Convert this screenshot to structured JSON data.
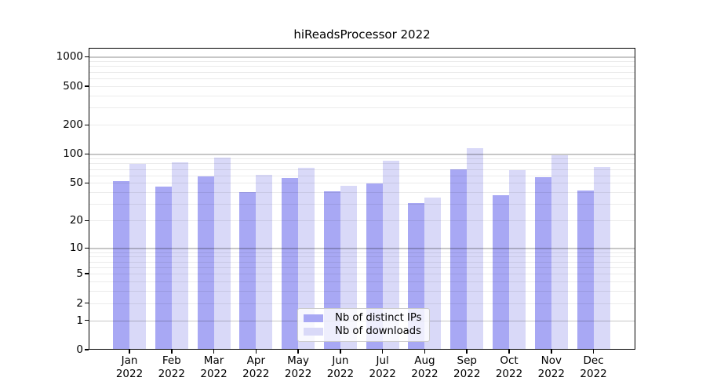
{
  "title": "hiReadsProcessor 2022",
  "chart_data": {
    "type": "bar",
    "title": "hiReadsProcessor 2022",
    "categories": [
      "Jan",
      "Feb",
      "Mar",
      "Apr",
      "May",
      "Jun",
      "Jul",
      "Aug",
      "Sep",
      "Oct",
      "Nov",
      "Dec"
    ],
    "category_year": "2022",
    "series": [
      {
        "name": "Nb of distinct IPs",
        "color": "#a8a8f4",
        "values": [
          52,
          46,
          59,
          40,
          56,
          41,
          49,
          31,
          70,
          37,
          58,
          42
        ]
      },
      {
        "name": "Nb of downloads",
        "color": "#d9d9f8",
        "values": [
          79,
          82,
          92,
          61,
          72,
          47,
          86,
          35,
          115,
          68,
          98,
          74
        ]
      }
    ],
    "y_axis": {
      "scale": "log1p",
      "ylim": [
        0,
        1200
      ],
      "tick_values": [
        0,
        1,
        2,
        5,
        10,
        20,
        50,
        100,
        200,
        500,
        1000
      ],
      "tick_labels": [
        "0",
        "1",
        "2",
        "5",
        "10",
        "20",
        "50",
        "100",
        "200",
        "500",
        "1000"
      ],
      "major_grid_values": [
        1,
        10,
        100,
        1000
      ],
      "minor_grid_values": [
        2,
        3,
        4,
        5,
        6,
        7,
        8,
        9,
        20,
        30,
        40,
        50,
        60,
        70,
        80,
        90,
        200,
        300,
        400,
        500,
        600,
        700,
        800,
        900
      ]
    },
    "legend": {
      "position": "lower center"
    },
    "colors": {
      "major_grid": "#c6c6c6",
      "minor_grid": "#ebebeb",
      "axis": "#000000",
      "background": "#ffffff"
    }
  }
}
